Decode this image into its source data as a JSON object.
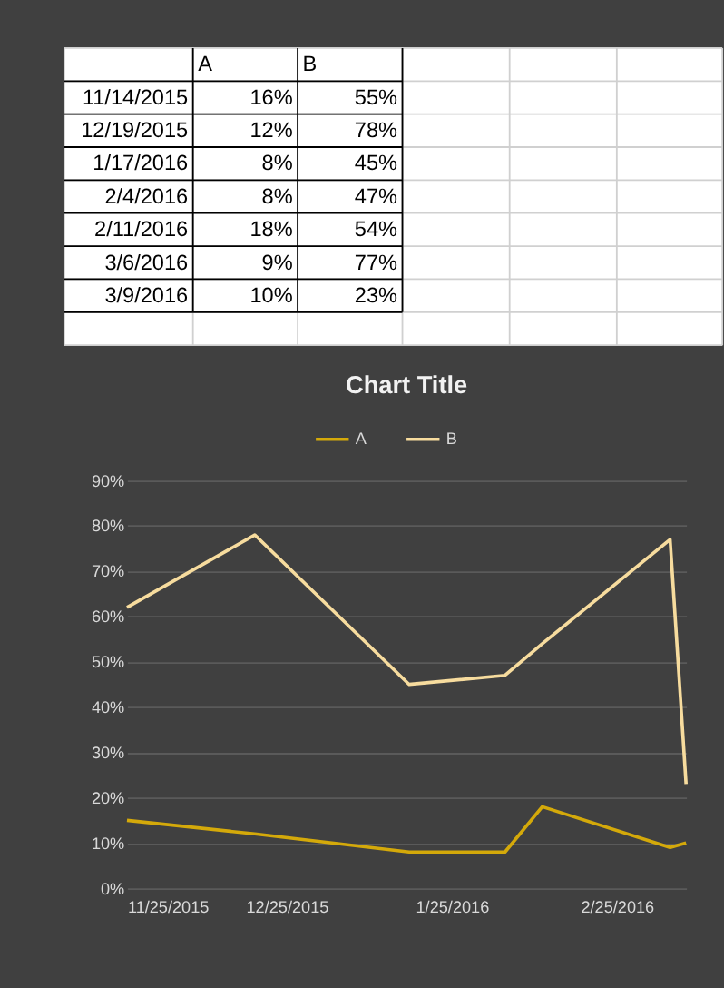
{
  "chart_data": [
    {
      "type": "other",
      "categories": [
        "11/14/2015",
        "12/19/2015",
        "1/17/2016",
        "2/4/2016",
        "2/11/2016",
        "3/6/2016",
        "3/9/2016"
      ],
      "series": [
        {
          "name": "A",
          "values": [
            16,
            12,
            8,
            8,
            18,
            9,
            10
          ],
          "value_labels": [
            "16%",
            "12%",
            "8%",
            "8%",
            "18%",
            "9%",
            "10%"
          ]
        },
        {
          "name": "B",
          "values": [
            55,
            78,
            45,
            47,
            54,
            77,
            23
          ],
          "value_labels": [
            "55%",
            "78%",
            "45%",
            "47%",
            "54%",
            "77%",
            "23%"
          ]
        }
      ]
    },
    {
      "type": "line",
      "title": "Chart Title",
      "x": [
        "2015-11-25",
        "2015-12-19",
        "2016-01-17",
        "2016-02-04",
        "2016-02-11",
        "2016-03-06",
        "2016-03-09"
      ],
      "series": [
        {
          "name": "A",
          "color": "#d4a90a",
          "values": [
            15,
            12,
            8,
            8,
            18,
            9,
            10
          ]
        },
        {
          "name": "B",
          "color": "#f7dc9e",
          "values": [
            62,
            78,
            45,
            47,
            54,
            77,
            23
          ]
        }
      ],
      "xlim": [
        "2015-11-25",
        "2016-03-09"
      ],
      "xticks": [
        {
          "value": "2015-11-25",
          "label": "11/25/2015"
        },
        {
          "value": "2015-12-25",
          "label": "12/25/2015"
        },
        {
          "value": "2016-01-25",
          "label": "1/25/2016"
        },
        {
          "value": "2016-02-25",
          "label": "2/25/2016"
        }
      ],
      "ylim": [
        0,
        90
      ],
      "yticks": [
        {
          "value": 0,
          "label": "0%"
        },
        {
          "value": 10,
          "label": "10%"
        },
        {
          "value": 20,
          "label": "20%"
        },
        {
          "value": 30,
          "label": "30%"
        },
        {
          "value": 40,
          "label": "40%"
        },
        {
          "value": 50,
          "label": "50%"
        },
        {
          "value": 60,
          "label": "60%"
        },
        {
          "value": 70,
          "label": "70%"
        },
        {
          "value": 80,
          "label": "80%"
        },
        {
          "value": 90,
          "label": "90%"
        }
      ],
      "grid": "y",
      "legend": "top",
      "marker": "none",
      "line_style": "solid"
    }
  ]
}
